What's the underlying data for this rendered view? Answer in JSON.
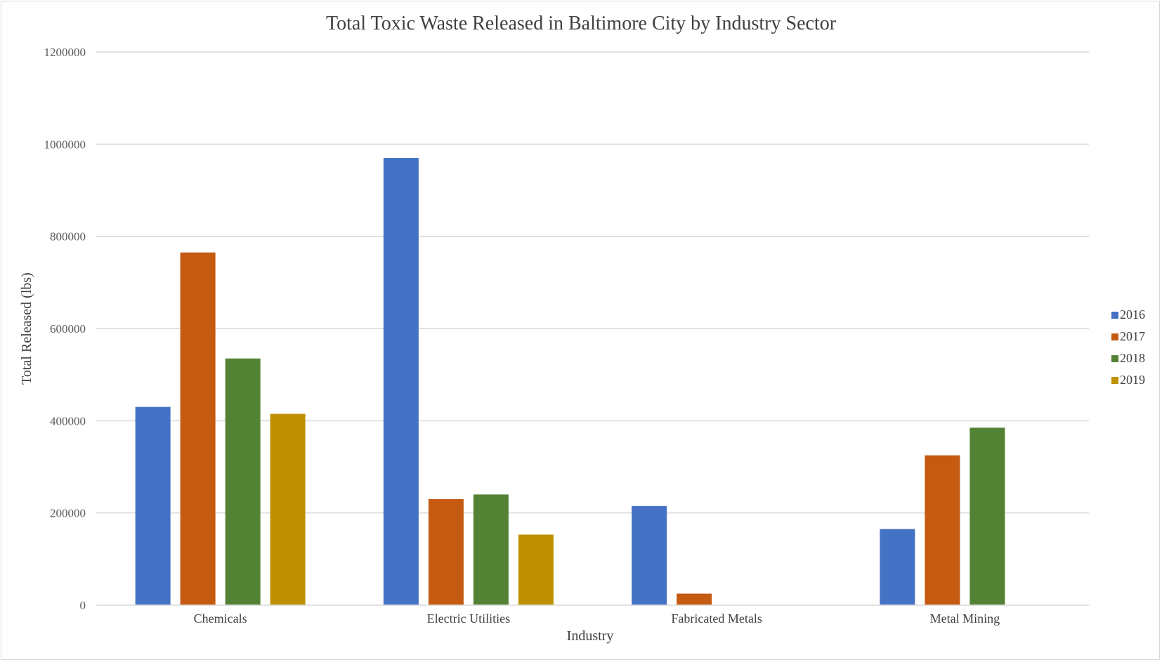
{
  "chart_data": {
    "type": "bar",
    "title": "Total Toxic Waste Released in Baltimore City by Industry Sector",
    "xlabel": "Industry",
    "ylabel": "Total Released (lbs)",
    "ylim": [
      0,
      1200000
    ],
    "yticks": [
      0,
      200000,
      400000,
      600000,
      800000,
      1000000,
      1200000
    ],
    "ytick_labels": [
      "0",
      "200000",
      "400000",
      "600000",
      "800000",
      "1000000",
      "1200000"
    ],
    "categories": [
      "Chemicals",
      "Electric Utilities",
      "Fabricated Metals",
      "Metal Mining"
    ],
    "series": [
      {
        "name": "2016",
        "color": "#4472c4",
        "values": [
          430000,
          970000,
          215000,
          165000
        ]
      },
      {
        "name": "2017",
        "color": "#c55a11",
        "values": [
          765000,
          230000,
          25000,
          325000
        ]
      },
      {
        "name": "2018",
        "color": "#548235",
        "values": [
          535000,
          240000,
          1000,
          385000
        ]
      },
      {
        "name": "2019",
        "color": "#bf9000",
        "values": [
          415000,
          153000,
          1000,
          0
        ]
      }
    ],
    "grid": true,
    "legend_position": "right"
  }
}
